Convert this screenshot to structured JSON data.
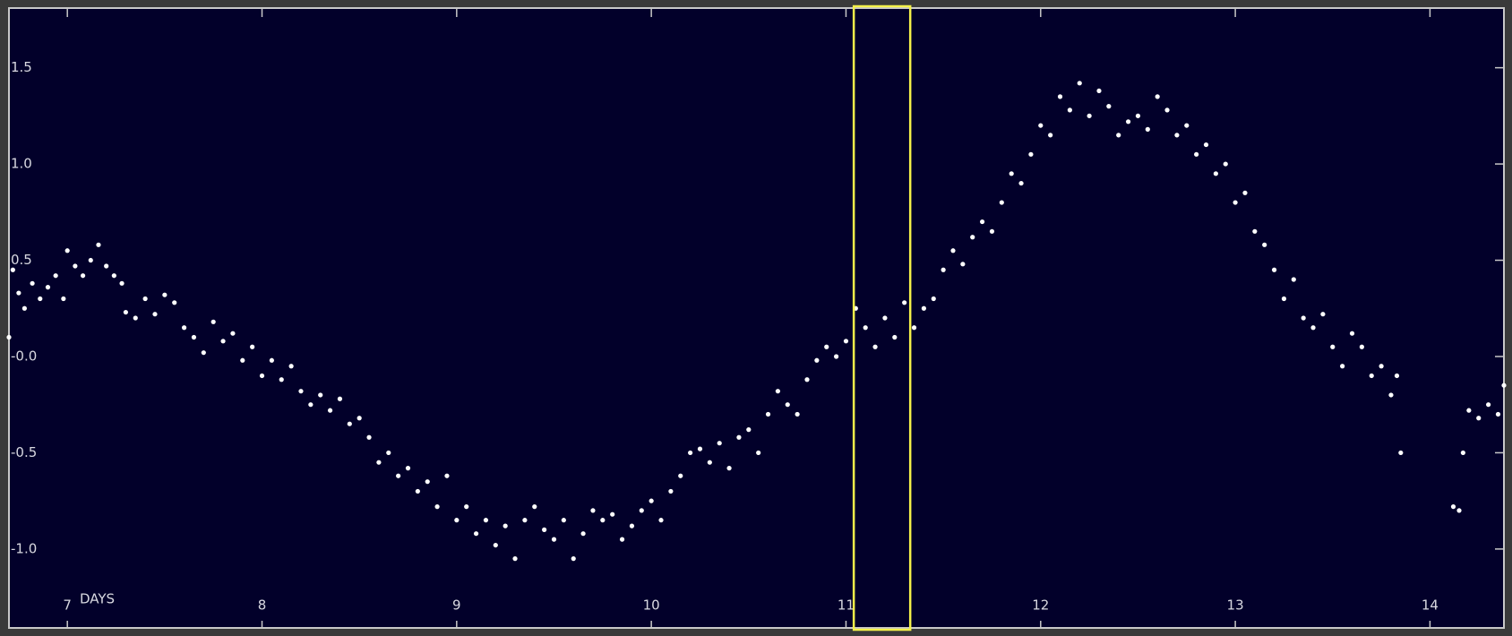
{
  "chart_data": {
    "type": "scatter",
    "xlabel": "DAYS",
    "xlim": [
      6.7,
      14.38
    ],
    "ylim": [
      -1.41,
      1.81
    ],
    "xticks": [
      7,
      8,
      9,
      10,
      11,
      12,
      13,
      14
    ],
    "yticks": [
      {
        "value": 1.5,
        "label": "1.5"
      },
      {
        "value": 1.0,
        "label": "1.0"
      },
      {
        "value": 0.5,
        "label": "0.5"
      },
      {
        "value": 0,
        "label": "-0.0"
      },
      {
        "value": -0.5,
        "label": "-0.5"
      },
      {
        "value": -1.0,
        "label": "-1.0"
      }
    ],
    "background": "#02002a",
    "color": "#ffffff",
    "highlight": {
      "xlim": [
        11.04,
        11.33
      ],
      "color": "#f4f04a"
    },
    "x": [
      6.7,
      6.72,
      6.75,
      6.78,
      6.82,
      6.86,
      6.9,
      6.94,
      6.98,
      7.0,
      7.04,
      7.08,
      7.12,
      7.16,
      7.2,
      7.24,
      7.28,
      7.3,
      7.35,
      7.4,
      7.45,
      7.5,
      7.55,
      7.6,
      7.65,
      7.7,
      7.75,
      7.8,
      7.85,
      7.9,
      7.95,
      8.0,
      8.05,
      8.1,
      8.15,
      8.2,
      8.25,
      8.3,
      8.35,
      8.4,
      8.45,
      8.5,
      8.55,
      8.6,
      8.65,
      8.7,
      8.75,
      8.8,
      8.85,
      8.9,
      8.95,
      9.0,
      9.05,
      9.1,
      9.15,
      9.2,
      9.25,
      9.3,
      9.35,
      9.4,
      9.45,
      9.5,
      9.55,
      9.6,
      9.65,
      9.7,
      9.75,
      9.8,
      9.85,
      9.9,
      9.95,
      10.0,
      10.05,
      10.1,
      10.15,
      10.2,
      10.25,
      10.3,
      10.35,
      10.4,
      10.45,
      10.5,
      10.55,
      10.6,
      10.65,
      10.7,
      10.75,
      10.8,
      10.85,
      10.9,
      10.95,
      11.0,
      11.05,
      11.1,
      11.15,
      11.2,
      11.25,
      11.3,
      11.35,
      11.4,
      11.45,
      11.5,
      11.55,
      11.6,
      11.65,
      11.7,
      11.75,
      11.8,
      11.85,
      11.9,
      11.95,
      12.0,
      12.05,
      12.1,
      12.15,
      12.2,
      12.25,
      12.3,
      12.35,
      12.4,
      12.45,
      12.5,
      12.55,
      12.6,
      12.65,
      12.7,
      12.75,
      12.8,
      12.85,
      12.9,
      12.95,
      13.0,
      13.05,
      13.1,
      13.15,
      13.2,
      13.25,
      13.3,
      13.35,
      13.4,
      13.45,
      13.5,
      13.55,
      13.6,
      13.65,
      13.7,
      13.75,
      13.8,
      13.83,
      13.85,
      14.12,
      14.15,
      14.17,
      14.2,
      14.25,
      14.3,
      14.35,
      14.38
    ],
    "y": [
      0.1,
      0.45,
      0.33,
      0.25,
      0.38,
      0.3,
      0.36,
      0.42,
      0.3,
      0.55,
      0.47,
      0.42,
      0.5,
      0.58,
      0.47,
      0.42,
      0.38,
      0.23,
      0.2,
      0.3,
      0.22,
      0.32,
      0.28,
      0.15,
      0.1,
      0.02,
      0.18,
      0.08,
      0.12,
      -0.02,
      0.05,
      -0.1,
      -0.02,
      -0.12,
      -0.05,
      -0.18,
      -0.25,
      -0.2,
      -0.28,
      -0.22,
      -0.35,
      -0.32,
      -0.42,
      -0.55,
      -0.5,
      -0.62,
      -0.58,
      -0.7,
      -0.65,
      -0.78,
      -0.62,
      -0.85,
      -0.78,
      -0.92,
      -0.85,
      -0.98,
      -0.88,
      -1.05,
      -0.85,
      -0.78,
      -0.9,
      -0.95,
      -0.85,
      -1.05,
      -0.92,
      -0.8,
      -0.85,
      -0.82,
      -0.95,
      -0.88,
      -0.8,
      -0.75,
      -0.85,
      -0.7,
      -0.62,
      -0.5,
      -0.48,
      -0.55,
      -0.45,
      -0.58,
      -0.42,
      -0.38,
      -0.5,
      -0.3,
      -0.18,
      -0.25,
      -0.3,
      -0.12,
      -0.02,
      0.05,
      0.0,
      0.08,
      0.25,
      0.15,
      0.05,
      0.2,
      0.1,
      0.28,
      0.15,
      0.25,
      0.3,
      0.45,
      0.55,
      0.48,
      0.62,
      0.7,
      0.65,
      0.8,
      0.95,
      0.9,
      1.05,
      1.2,
      1.15,
      1.35,
      1.28,
      1.42,
      1.25,
      1.38,
      1.3,
      1.15,
      1.22,
      1.25,
      1.18,
      1.35,
      1.28,
      1.15,
      1.2,
      1.05,
      1.1,
      0.95,
      1.0,
      0.8,
      0.85,
      0.65,
      0.58,
      0.45,
      0.3,
      0.4,
      0.2,
      0.15,
      0.22,
      0.05,
      -0.05,
      0.12,
      0.05,
      -0.1,
      -0.05,
      -0.2,
      -0.1,
      -0.5,
      -0.78,
      -0.8,
      -0.5,
      -0.28,
      -0.32,
      -0.25,
      -0.3,
      -0.15
    ]
  }
}
